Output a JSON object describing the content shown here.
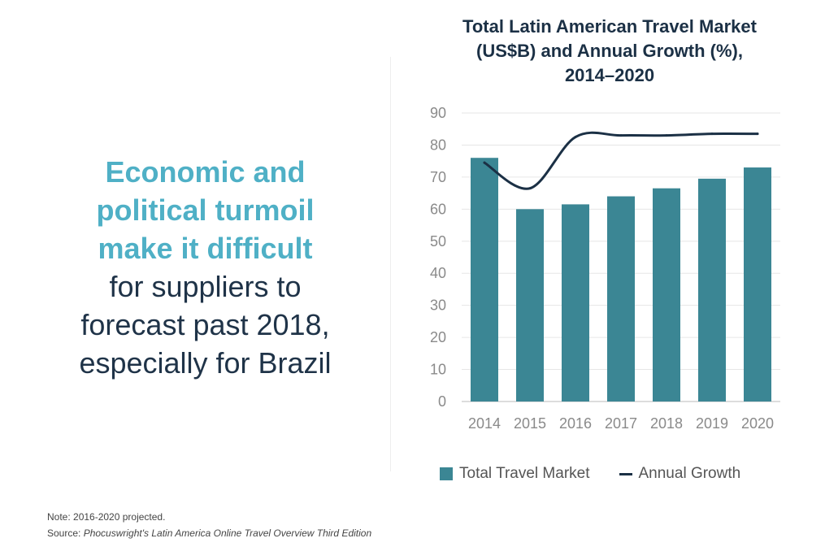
{
  "headline": {
    "highlight_lines": [
      "Economic and",
      "political turmoil",
      "make it difficult"
    ],
    "body_lines": [
      "for suppliers to",
      "forecast past 2018,",
      "especially for Brazil"
    ]
  },
  "chart_data": {
    "type": "bar",
    "title_lines": [
      "Total Latin American Travel Market",
      "(US$B) and Annual Growth (%),",
      "2014–2020"
    ],
    "categories": [
      "2014",
      "2015",
      "2016",
      "2017",
      "2018",
      "2019",
      "2020"
    ],
    "series": [
      {
        "name": "Total Travel Market",
        "type": "bar",
        "values": [
          76,
          60,
          61.5,
          64,
          66.5,
          69.5,
          73
        ],
        "color": "#3b8694"
      },
      {
        "name": "Annual Growth",
        "type": "line",
        "values": [
          74.5,
          66.5,
          82.5,
          83,
          83,
          83.5,
          83.5
        ],
        "color": "#1b3045"
      }
    ],
    "y_ticks": [
      0,
      10,
      20,
      30,
      40,
      50,
      60,
      70,
      80,
      90
    ],
    "ylim": [
      0,
      90
    ],
    "grid": true,
    "legend_position": "bottom"
  },
  "footnote": {
    "note": "Note: 2016-2020 projected.",
    "source_prefix": "Source: ",
    "source_title": "Phocuswright's Latin America Online Travel Overview Third Edition"
  }
}
